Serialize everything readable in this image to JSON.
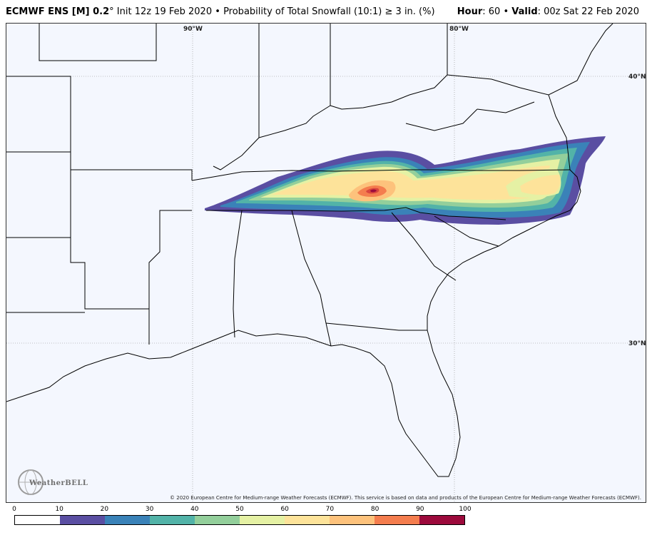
{
  "header": {
    "model": "ECMWF ENS [M] 0.2",
    "degree": "°",
    "init": "Init 12z 19 Feb 2020",
    "bullet": "•",
    "product": "Probability of Total Snowfall (10:1) ≥ 3 in. (%)",
    "hour_label": "Hour",
    "hour_value": ": 60",
    "valid_label": "Valid",
    "valid_value": ": 00z Sat 22 Feb 2020"
  },
  "map": {
    "gridlines": {
      "lon_90": "90°W",
      "lon_80": "80°W",
      "lat_40": "40°N",
      "lat_30": "30°N"
    },
    "copyright": "© 2020 European Centre for Medium-range Weather Forecasts (ECMWF). This service is based on data and products of the European Centre for Medium-range Weather Forecasts (ECMWF).",
    "logo": "WeatherBELL"
  },
  "colorbar": {
    "ticks": [
      "0",
      "10",
      "20",
      "30",
      "40",
      "50",
      "60",
      "70",
      "80",
      "90",
      "100"
    ],
    "colors": [
      "#ffffff",
      "#5a4ea2",
      "#3a82b8",
      "#52b3a8",
      "#93cf9b",
      "#e5f1a4",
      "#fde39a",
      "#fdc27c",
      "#f47d4e",
      "#d8453e",
      "#9c0a3c"
    ]
  }
}
